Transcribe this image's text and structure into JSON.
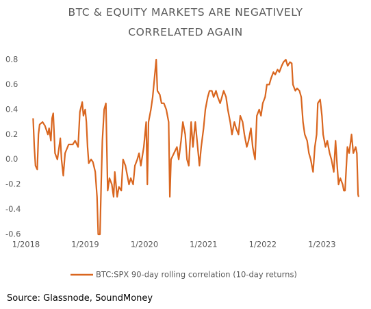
{
  "chart_data": {
    "type": "line",
    "title": "BTC & EQUITY MARKETS ARE NEGATIVELY CORRELATED AGAIN",
    "source": "Source: Glassnode, SoundMoney",
    "xlim": [
      2018,
      2023.69
    ],
    "xticks": [
      {
        "value": 2018,
        "label": "1/2018"
      },
      {
        "value": 2019,
        "label": "1/2019"
      },
      {
        "value": 2020,
        "label": "1/2020"
      },
      {
        "value": 2021,
        "label": "1/2021"
      },
      {
        "value": 2022,
        "label": "1/2022"
      },
      {
        "value": 2023,
        "label": "1/2023"
      }
    ],
    "ylim": [
      -0.6,
      0.8
    ],
    "yticks": [
      0.8,
      0.6,
      0.4,
      0.2,
      {
        "value": 0,
        "label": "0.0"
      },
      -0.2,
      -0.4,
      -0.6
    ],
    "grid": false,
    "legend": "bottom",
    "x": [
      2018.12,
      2018.14,
      2018.16,
      2018.19,
      2018.21,
      2018.23,
      2018.28,
      2018.32,
      2018.37,
      2018.39,
      2018.42,
      2018.44,
      2018.46,
      2018.49,
      2018.53,
      2018.58,
      2018.6,
      2018.63,
      2018.66,
      2018.72,
      2018.79,
      2018.83,
      2018.88,
      2018.91,
      2018.95,
      2018.97,
      2019.0,
      2019.02,
      2019.04,
      2019.06,
      2019.1,
      2019.13,
      2019.17,
      2019.2,
      2019.22,
      2019.25,
      2019.27,
      2019.29,
      2019.32,
      2019.35,
      2019.38,
      2019.41,
      2019.45,
      2019.48,
      2019.5,
      2019.54,
      2019.57,
      2019.61,
      2019.64,
      2019.68,
      2019.7,
      2019.74,
      2019.77,
      2019.81,
      2019.84,
      2019.88,
      2019.91,
      2019.94,
      2019.99,
      2020.03,
      2020.05,
      2020.07,
      2020.11,
      2020.14,
      2020.18,
      2020.2,
      2020.22,
      2020.26,
      2020.29,
      2020.33,
      2020.37,
      2020.41,
      2020.43,
      2020.45,
      2020.5,
      2020.55,
      2020.58,
      2020.62,
      2020.65,
      2020.69,
      2020.72,
      2020.75,
      2020.79,
      2020.82,
      2020.86,
      2020.89,
      2020.93,
      2020.96,
      2021.0,
      2021.03,
      2021.07,
      2021.1,
      2021.14,
      2021.17,
      2021.21,
      2021.24,
      2021.28,
      2021.31,
      2021.34,
      2021.38,
      2021.41,
      2021.45,
      2021.48,
      2021.52,
      2021.55,
      2021.59,
      2021.62,
      2021.66,
      2021.69,
      2021.73,
      2021.76,
      2021.8,
      2021.83,
      2021.87,
      2021.9,
      2021.94,
      2021.97,
      2022.0,
      2022.04,
      2022.07,
      2022.11,
      2022.14,
      2022.18,
      2022.21,
      2022.25,
      2022.28,
      2022.32,
      2022.35,
      2022.39,
      2022.42,
      2022.46,
      2022.49,
      2022.51,
      2022.55,
      2022.58,
      2022.62,
      2022.65,
      2022.68,
      2022.71,
      2022.75,
      2022.78,
      2022.81,
      2022.85,
      2022.88,
      2022.91,
      2022.93,
      2022.97,
      2023.0,
      2023.02,
      2023.06,
      2023.09,
      2023.13,
      2023.16,
      2023.2,
      2023.23,
      2023.25,
      2023.28,
      2023.31,
      2023.35,
      2023.37,
      2023.39,
      2023.43,
      2023.46,
      2023.5,
      2023.53,
      2023.57,
      2023.59,
      2023.61,
      2023.62
    ],
    "series": [
      {
        "name": "BTC:SPX 90-day rolling correlation (10-day returns)",
        "color": "#d9661f",
        "values": [
          0.33,
          0.1,
          -0.05,
          -0.08,
          0.2,
          0.28,
          0.3,
          0.27,
          0.2,
          0.25,
          0.15,
          0.33,
          0.37,
          0.05,
          0.0,
          0.17,
          0.0,
          -0.13,
          0.05,
          0.12,
          0.12,
          0.15,
          0.1,
          0.38,
          0.46,
          0.35,
          0.4,
          0.3,
          0.1,
          -0.03,
          0.0,
          -0.02,
          -0.1,
          -0.3,
          -0.6,
          -0.6,
          -0.2,
          0.15,
          0.4,
          0.45,
          -0.25,
          -0.15,
          -0.2,
          -0.3,
          -0.1,
          -0.3,
          -0.22,
          -0.25,
          0.0,
          -0.05,
          -0.1,
          -0.2,
          -0.15,
          -0.2,
          -0.05,
          0.0,
          0.05,
          -0.05,
          0.1,
          0.3,
          -0.2,
          0.3,
          0.4,
          0.5,
          0.7,
          0.8,
          0.55,
          0.52,
          0.45,
          0.45,
          0.4,
          0.3,
          -0.3,
          0.0,
          0.05,
          0.1,
          0.0,
          0.15,
          0.3,
          0.2,
          0.0,
          -0.05,
          0.3,
          0.1,
          0.3,
          0.15,
          -0.05,
          0.1,
          0.25,
          0.4,
          0.5,
          0.55,
          0.55,
          0.5,
          0.55,
          0.5,
          0.45,
          0.5,
          0.55,
          0.5,
          0.4,
          0.3,
          0.2,
          0.3,
          0.25,
          0.2,
          0.35,
          0.3,
          0.2,
          0.1,
          0.15,
          0.25,
          0.1,
          0.0,
          0.35,
          0.4,
          0.35,
          0.45,
          0.5,
          0.6,
          0.6,
          0.65,
          0.7,
          0.68,
          0.72,
          0.7,
          0.75,
          0.78,
          0.8,
          0.75,
          0.78,
          0.77,
          0.6,
          0.55,
          0.57,
          0.55,
          0.5,
          0.3,
          0.2,
          0.15,
          0.05,
          0.0,
          -0.1,
          0.1,
          0.2,
          0.45,
          0.48,
          0.35,
          0.2,
          0.1,
          0.15,
          0.05,
          0.0,
          -0.1,
          0.15,
          0.0,
          -0.2,
          -0.15,
          -0.2,
          -0.25,
          -0.25,
          0.1,
          0.05,
          0.2,
          0.05,
          0.1,
          0.05,
          -0.28,
          -0.3
        ]
      }
    ]
  }
}
